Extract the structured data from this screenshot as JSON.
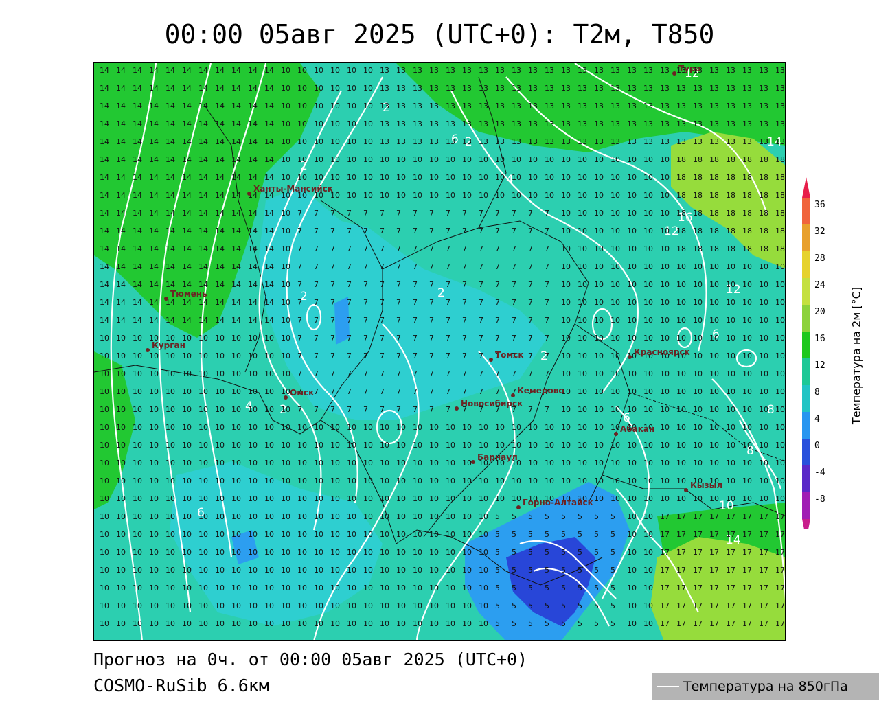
{
  "title": "00:00 05авг 2025 (UTC+0): T2м, T850",
  "footer": {
    "forecast": "Прогноз на 0ч. от 00:00 05авг 2025 (UTC+0)",
    "model": "COSMO-RuSib 6.6км"
  },
  "legend": {
    "line_label": "Температура на 850гПа",
    "line_color": "#ffffff"
  },
  "colorbar": {
    "title": "Температура на 2м [°C]",
    "ticks": [
      "36",
      "32",
      "28",
      "24",
      "20",
      "16",
      "12",
      "8",
      "4",
      "0",
      "-4",
      "-8"
    ],
    "colors": [
      "#e81e4a",
      "#f0643c",
      "#e8a02c",
      "#e6d22c",
      "#c4e040",
      "#8cd23c",
      "#1ec81e",
      "#1ec896",
      "#22c4c4",
      "#2896f0",
      "#2850dc",
      "#5a28c8",
      "#a01eb4",
      "#c81e8c"
    ]
  },
  "map": {
    "fill_colors": {
      "teal": "#2ccfb0",
      "cyan": "#2ecfd0",
      "green": "#22c832",
      "light_green": "#96dc3c",
      "blue": "#2c9ef0",
      "dark_blue": "#2846d8"
    },
    "cities": [
      {
        "name": "Ханты-Мансийск"
      },
      {
        "name": "Тюмень"
      },
      {
        "name": "Курган"
      },
      {
        "name": "Омск"
      },
      {
        "name": "Новосибирск"
      },
      {
        "name": "Томск"
      },
      {
        "name": "Кемерово"
      },
      {
        "name": "Барнаул"
      },
      {
        "name": "Красноярск"
      },
      {
        "name": "Абакан"
      },
      {
        "name": "Горно-Алтайск"
      },
      {
        "name": "Кызыл"
      },
      {
        "name": "Тура"
      }
    ],
    "isotherm_labels": [
      "2",
      "4",
      "6",
      "8",
      "10",
      "12",
      "14",
      "16"
    ]
  }
}
